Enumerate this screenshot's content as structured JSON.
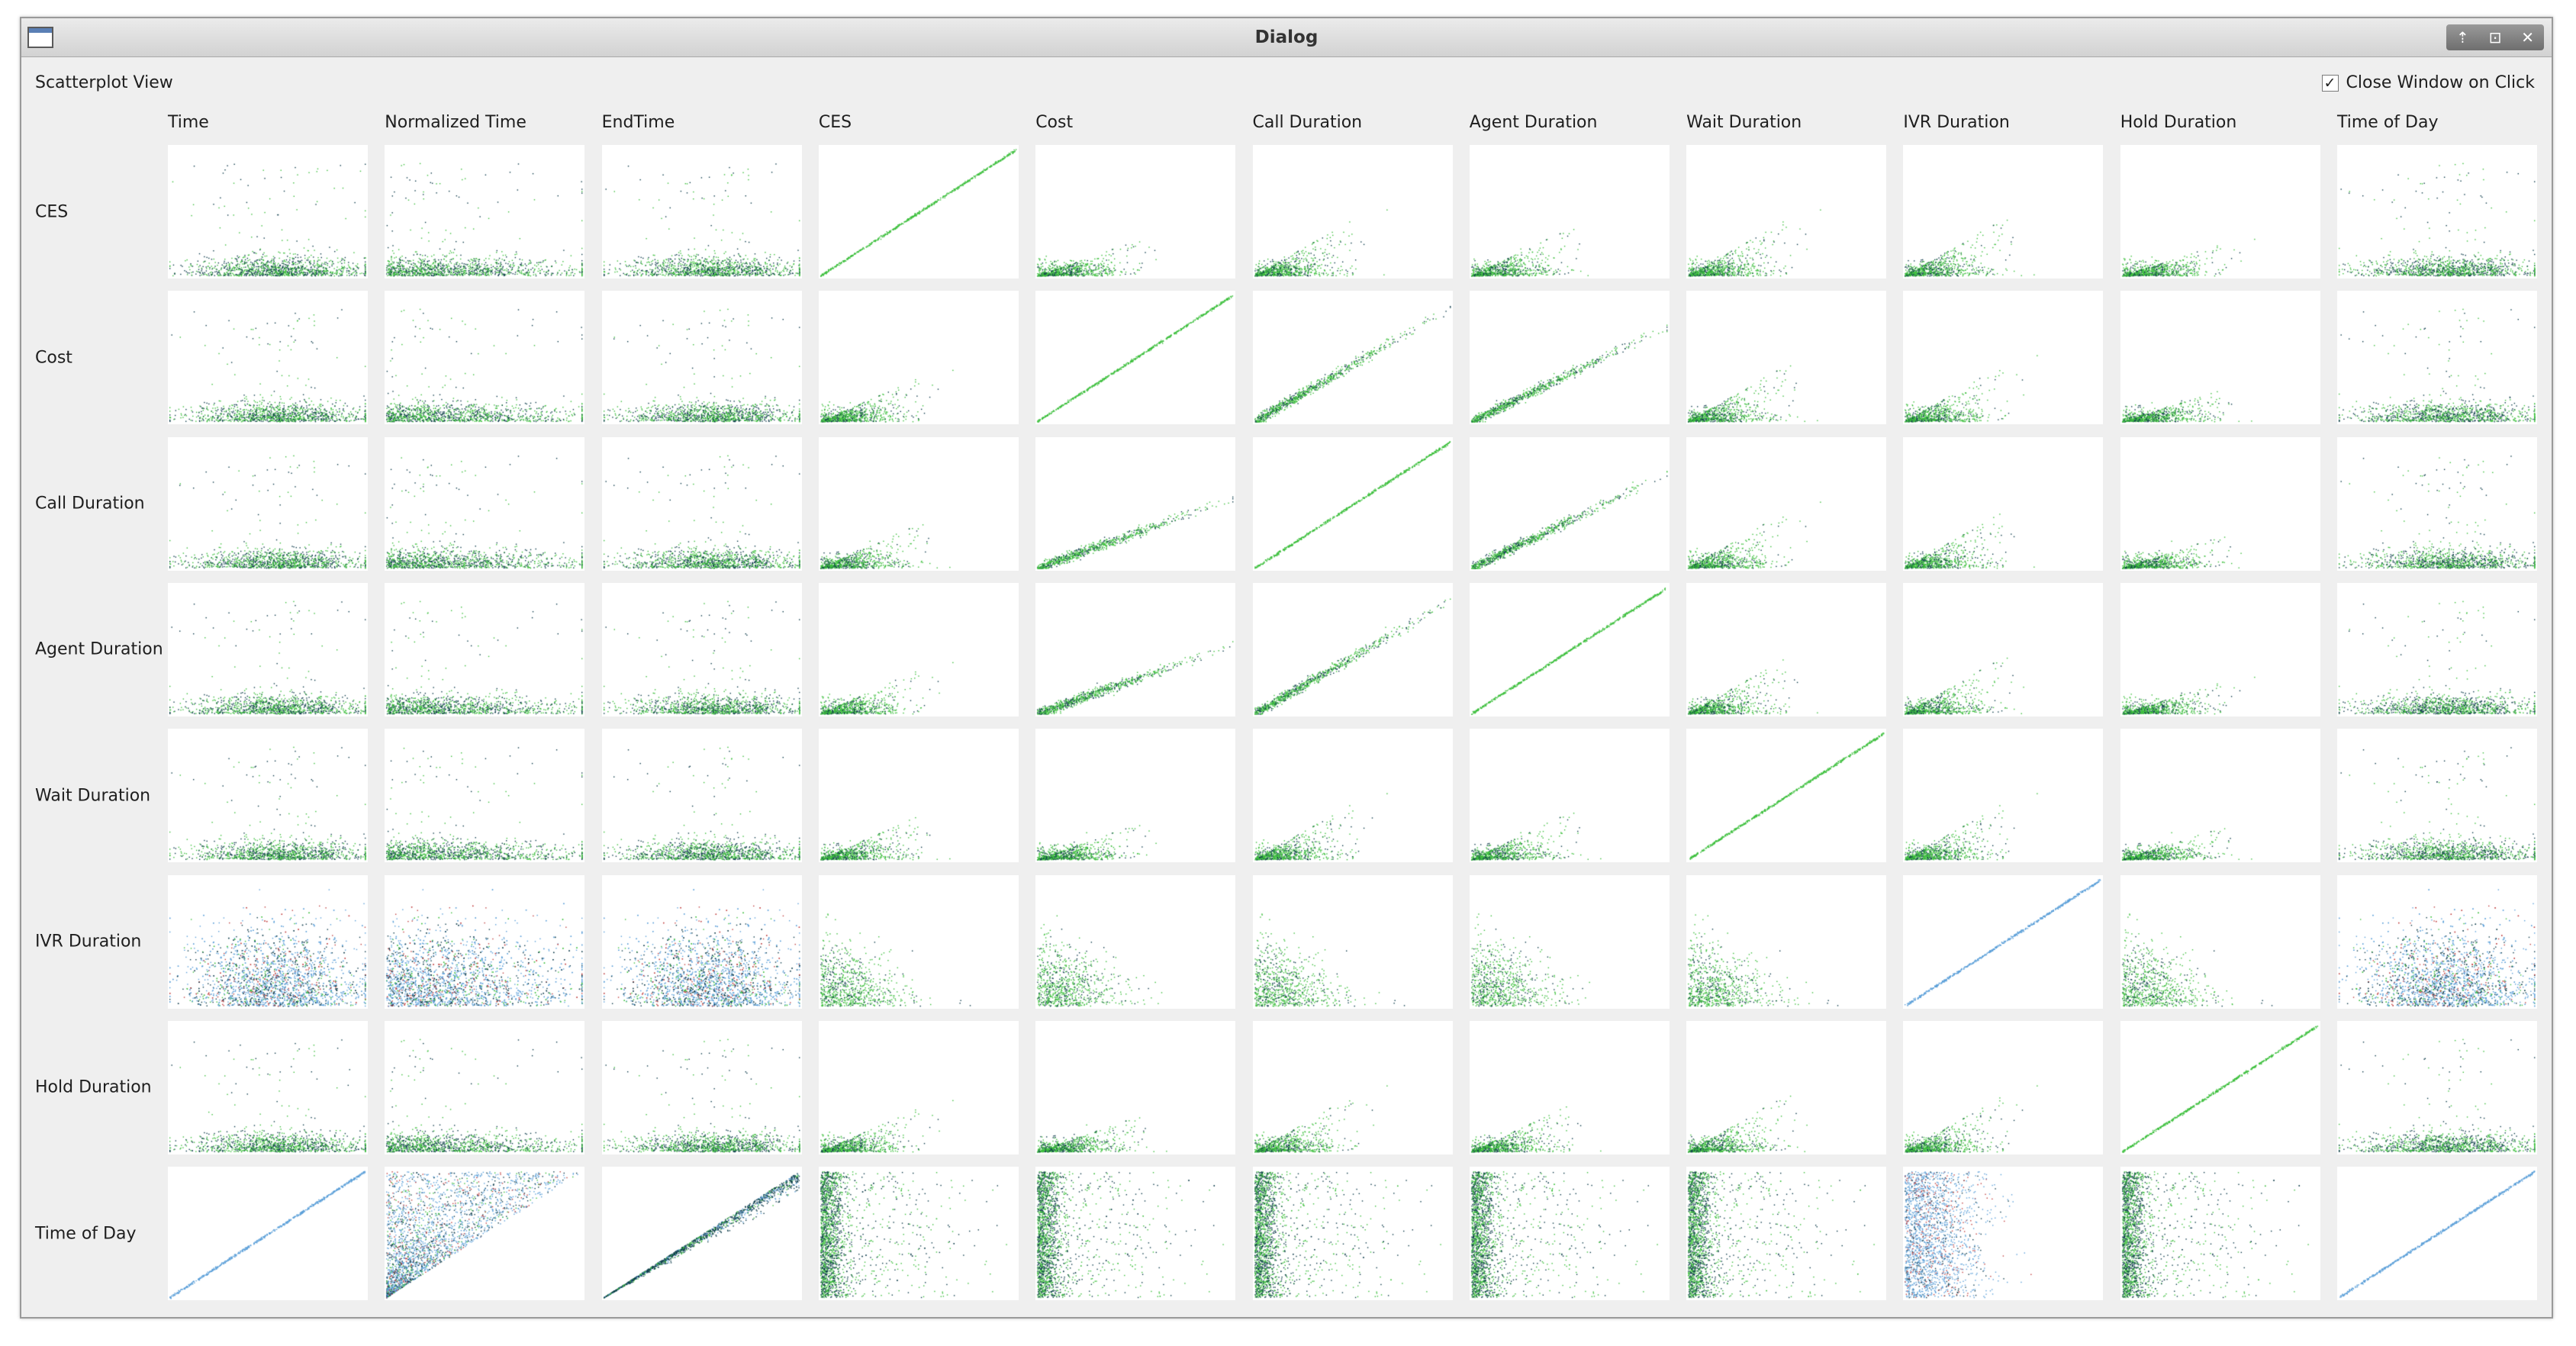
{
  "window": {
    "title": "Dialog",
    "controls": [
      "⇡",
      "⊡",
      "✕"
    ]
  },
  "view_label": "Scatterplot View",
  "close_option": {
    "label": "Close Window on Click",
    "checked": true,
    "check_glyph": "✓"
  },
  "columns": [
    "Time",
    "Normalized Time",
    "EndTime",
    "CES",
    "Cost",
    "Call Duration",
    "Agent Duration",
    "Wait Duration",
    "IVR Duration",
    "Hold Duration",
    "Time of Day"
  ],
  "rows": [
    "CES",
    "Cost",
    "Call Duration",
    "Agent Duration",
    "Wait Duration",
    "IVR Duration",
    "Hold Duration",
    "Time of Day"
  ],
  "colors": {
    "point_green": "#3dbf3d",
    "point_dark": "#0d3b4a",
    "point_blue": "#5b9fd8",
    "point_red": "#c04040",
    "panel_bg": "#ffffff",
    "window_bg": "#efefef"
  },
  "chart_data": {
    "type": "scatter",
    "layout": "scatterplot-matrix",
    "x_variables": [
      "Time",
      "Normalized Time",
      "EndTime",
      "CES",
      "Cost",
      "Call Duration",
      "Agent Duration",
      "Wait Duration",
      "IVR Duration",
      "Hold Duration",
      "Time of Day"
    ],
    "y_variables": [
      "CES",
      "Cost",
      "Call Duration",
      "Agent Duration",
      "Wait Duration",
      "IVR Duration",
      "Hold Duration",
      "Time of Day"
    ],
    "axes_shown": false,
    "grid": false
  }
}
